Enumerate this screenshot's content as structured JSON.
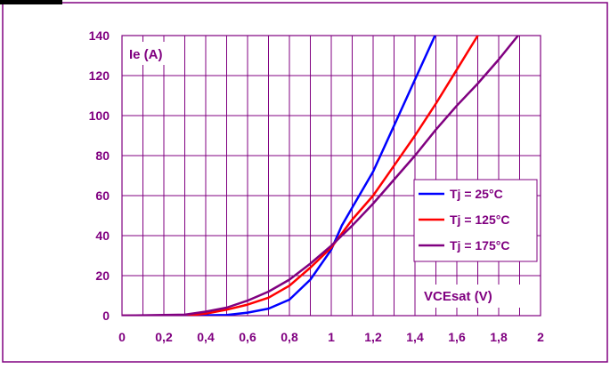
{
  "chart_data": {
    "type": "line",
    "title": "",
    "xlabel": "VCEsat (V)",
    "ylabel": "Ie (A)",
    "xlim": [
      0,
      2
    ],
    "ylim": [
      0,
      140
    ],
    "x_ticks": [
      0,
      0.2,
      0.4,
      0.6,
      0.8,
      1,
      1.2,
      1.4,
      1.6,
      1.8,
      2
    ],
    "x_tick_labels": [
      "0",
      "0,2",
      "0,4",
      "0,6",
      "0,8",
      "1",
      "1,2",
      "1,4",
      "1,6",
      "1,8",
      "2"
    ],
    "y_ticks": [
      0,
      20,
      40,
      60,
      80,
      100,
      120,
      140
    ],
    "y_tick_labels": [
      "0",
      "20",
      "40",
      "60",
      "80",
      "100",
      "120",
      "140"
    ],
    "x_minor_step": 0.1,
    "grid": true,
    "legend_position": "right-middle",
    "series": [
      {
        "name": "Tj = 25°C",
        "color": "#0000FF",
        "points": [
          [
            0,
            0
          ],
          [
            0.3,
            0
          ],
          [
            0.5,
            0.3
          ],
          [
            0.6,
            1.5
          ],
          [
            0.7,
            3.5
          ],
          [
            0.8,
            8
          ],
          [
            0.9,
            18
          ],
          [
            1.0,
            33
          ],
          [
            1.05,
            45
          ],
          [
            1.1,
            54
          ],
          [
            1.2,
            72
          ],
          [
            1.3,
            95
          ],
          [
            1.4,
            118
          ],
          [
            1.5,
            141
          ]
        ]
      },
      {
        "name": "Tj = 125°C",
        "color": "#FF0000",
        "points": [
          [
            0,
            0
          ],
          [
            0.3,
            0
          ],
          [
            0.4,
            1
          ],
          [
            0.5,
            3
          ],
          [
            0.6,
            5.5
          ],
          [
            0.7,
            9
          ],
          [
            0.8,
            15
          ],
          [
            0.9,
            24
          ],
          [
            1.0,
            34
          ],
          [
            1.1,
            48
          ],
          [
            1.2,
            60
          ],
          [
            1.3,
            75
          ],
          [
            1.4,
            90
          ],
          [
            1.5,
            106
          ],
          [
            1.6,
            123
          ],
          [
            1.7,
            140
          ]
        ]
      },
      {
        "name": "Tj = 175°C",
        "color": "#800080",
        "points": [
          [
            0,
            0
          ],
          [
            0.3,
            0.5
          ],
          [
            0.4,
            2
          ],
          [
            0.5,
            4
          ],
          [
            0.6,
            7.5
          ],
          [
            0.7,
            12
          ],
          [
            0.8,
            18
          ],
          [
            0.9,
            26
          ],
          [
            1.0,
            35
          ],
          [
            1.1,
            45
          ],
          [
            1.2,
            56
          ],
          [
            1.3,
            68
          ],
          [
            1.4,
            80
          ],
          [
            1.5,
            93
          ],
          [
            1.6,
            105
          ],
          [
            1.7,
            116
          ],
          [
            1.8,
            128
          ],
          [
            1.9,
            141
          ]
        ]
      }
    ]
  },
  "colors": {
    "frame": "#800080",
    "grid": "#800080",
    "axis_text": "#800080"
  }
}
